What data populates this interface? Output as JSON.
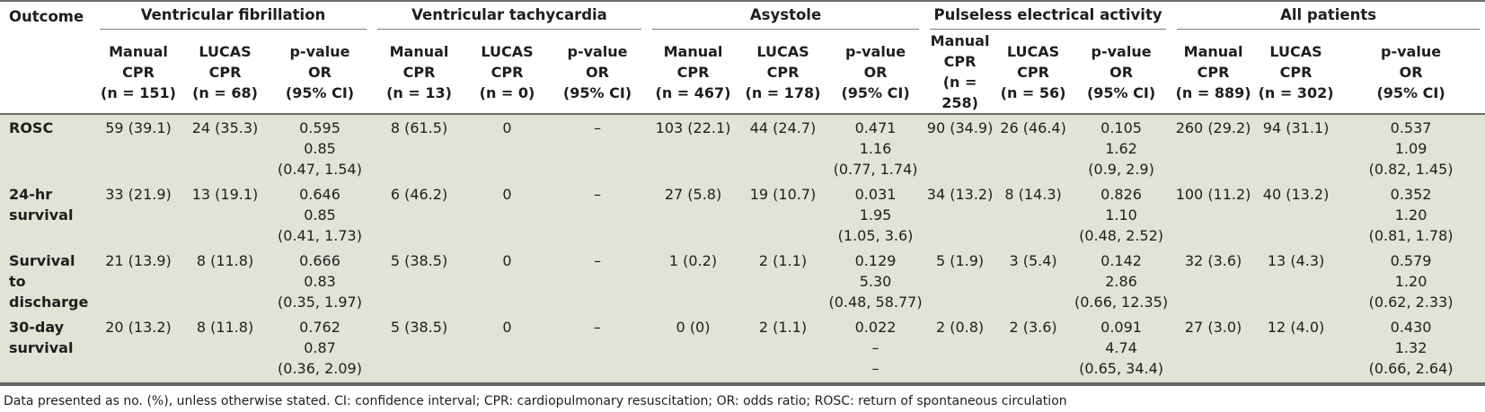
{
  "header": {
    "outcome_label": "Outcome",
    "groups": [
      "Ventricular fibrillation",
      "Ventricular tachycardia",
      "Asystole",
      "Pulseless electrical activity",
      "All patients"
    ],
    "subcols": [
      [
        "Manual",
        "CPR",
        "(n = 151)"
      ],
      [
        "LUCAS",
        "CPR",
        "(n = 68)"
      ],
      [
        "p-value",
        "OR",
        "(95% CI)"
      ],
      [
        "Manual",
        "CPR",
        "(n = 13)"
      ],
      [
        "LUCAS",
        "CPR",
        "(n = 0)"
      ],
      [
        "p-value",
        "OR",
        "(95% CI)"
      ],
      [
        "Manual",
        "CPR",
        "(n = 467)"
      ],
      [
        "LUCAS",
        "CPR",
        "(n = 178)"
      ],
      [
        "p-value",
        "OR",
        "(95% CI)"
      ],
      [
        "Manual",
        "CPR",
        "(n = 258)"
      ],
      [
        "LUCAS",
        "CPR",
        "(n = 56)"
      ],
      [
        "p-value",
        "OR",
        "(95% CI)"
      ],
      [
        "Manual",
        "CPR",
        "(n = 889)"
      ],
      [
        "LUCAS",
        "CPR",
        "(n = 302)"
      ],
      [
        "p-value",
        "OR",
        "(95% CI)"
      ]
    ]
  },
  "rows": [
    {
      "outcome": [
        "ROSC"
      ],
      "cells": [
        [
          "59 (39.1)"
        ],
        [
          "24 (35.3)"
        ],
        [
          "0.595",
          "0.85",
          "(0.47, 1.54)"
        ],
        [
          "8 (61.5)"
        ],
        [
          "0"
        ],
        [
          "–"
        ],
        [
          "103 (22.1)"
        ],
        [
          "44 (24.7)"
        ],
        [
          "0.471",
          "1.16",
          "(0.77, 1.74)"
        ],
        [
          "90 (34.9)"
        ],
        [
          "26 (46.4)"
        ],
        [
          "0.105",
          "1.62",
          "(0.9, 2.9)"
        ],
        [
          "260 (29.2)"
        ],
        [
          "94 (31.1)"
        ],
        [
          "0.537",
          "1.09",
          "(0.82, 1.45)"
        ]
      ]
    },
    {
      "outcome": [
        "24-hr",
        "survival"
      ],
      "cells": [
        [
          "33 (21.9)"
        ],
        [
          "13 (19.1)"
        ],
        [
          "0.646",
          "0.85",
          "(0.41, 1.73)"
        ],
        [
          "6 (46.2)"
        ],
        [
          "0"
        ],
        [
          "–"
        ],
        [
          "27 (5.8)"
        ],
        [
          "19 (10.7)"
        ],
        [
          "0.031",
          "1.95",
          "(1.05, 3.6)"
        ],
        [
          "34 (13.2)"
        ],
        [
          "8 (14.3)"
        ],
        [
          "0.826",
          "1.10",
          "(0.48, 2.52)"
        ],
        [
          "100 (11.2)"
        ],
        [
          "40 (13.2)"
        ],
        [
          "0.352",
          "1.20",
          "(0.81, 1.78)"
        ]
      ]
    },
    {
      "outcome": [
        "Survival to",
        "discharge"
      ],
      "cells": [
        [
          "21 (13.9)"
        ],
        [
          "8  (11.8)"
        ],
        [
          "0.666",
          "0.83",
          "(0.35, 1.97)"
        ],
        [
          "5 (38.5)"
        ],
        [
          "0"
        ],
        [
          "–"
        ],
        [
          "1 (0.2)"
        ],
        [
          "2 (1.1)"
        ],
        [
          "0.129",
          "5.30",
          "(0.48, 58.77)"
        ],
        [
          "5 (1.9)"
        ],
        [
          "3 (5.4)"
        ],
        [
          "0.142",
          "2.86",
          "(0.66, 12.35)"
        ],
        [
          "32 (3.6)"
        ],
        [
          "13 (4.3)"
        ],
        [
          "0.579",
          "1.20",
          "(0.62, 2.33)"
        ]
      ]
    },
    {
      "outcome": [
        "30-day",
        "survival"
      ],
      "cells": [
        [
          "20 (13.2)"
        ],
        [
          "8  (11.8)"
        ],
        [
          "0.762",
          "0.87",
          "(0.36, 2.09)"
        ],
        [
          "5 (38.5)"
        ],
        [
          "0"
        ],
        [
          "–"
        ],
        [
          "0 (0)"
        ],
        [
          "2 (1.1)"
        ],
        [
          "0.022",
          "–",
          "–"
        ],
        [
          "2 (0.8)"
        ],
        [
          "2 (3.6)"
        ],
        [
          "0.091",
          "4.74",
          "(0.65, 34.4)"
        ],
        [
          "27 (3.0)"
        ],
        [
          "12 (4.0)"
        ],
        [
          "0.430",
          "1.32",
          "(0.66, 2.64)"
        ]
      ]
    }
  ],
  "footnote": "Data presented as no. (%), unless otherwise stated. CI: confidence interval; CPR: cardiopulmonary resuscitation; OR: odds ratio; ROSC: return of spontaneous circulation"
}
